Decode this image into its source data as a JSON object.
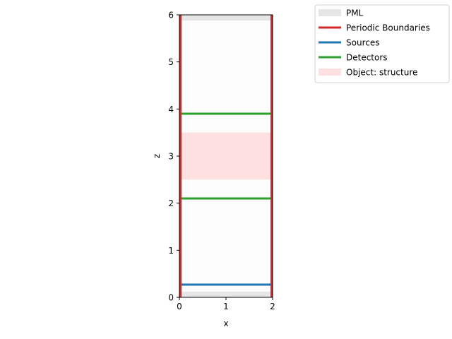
{
  "chart_data": {
    "type": "simulation-layout",
    "xlabel": "x",
    "ylabel": "z",
    "xlim": [
      0,
      2
    ],
    "ylim": [
      0,
      6
    ],
    "xticks": [
      0,
      1,
      2
    ],
    "yticks": [
      0,
      1,
      2,
      3,
      4,
      5,
      6
    ],
    "grid": false,
    "legend_position": "upper-right-outside",
    "pml_regions": [
      {
        "x": [
          0,
          2
        ],
        "z": [
          5.88,
          6.0
        ]
      },
      {
        "x": [
          0,
          2
        ],
        "z": [
          0.0,
          0.12
        ]
      }
    ],
    "pml_interior": {
      "x": [
        0,
        2
      ],
      "z": [
        0.12,
        5.88
      ]
    },
    "periodic_boundaries": [
      0.0,
      2.0
    ],
    "sources": [
      {
        "z": 0.27,
        "x": [
          0,
          2
        ]
      }
    ],
    "detectors": [
      {
        "z": 2.1,
        "x": [
          0,
          2
        ]
      },
      {
        "z": 3.9,
        "x": [
          0,
          2
        ]
      }
    ],
    "objects": [
      {
        "name": "structure",
        "x": [
          0,
          2
        ],
        "z": [
          2.5,
          3.5
        ]
      }
    ],
    "colors": {
      "pml": "#e6e6e6",
      "pml_interior": "#fcfcfc",
      "periodic": "#d62728",
      "source": "#1f77b4",
      "detector": "#2ca02c",
      "object": "#ffe0e0"
    },
    "legend": [
      {
        "label": "PML",
        "kind": "pml"
      },
      {
        "label": "Periodic Boundaries",
        "kind": "periodic"
      },
      {
        "label": "Sources",
        "kind": "source"
      },
      {
        "label": "Detectors",
        "kind": "detector"
      },
      {
        "label": "Object: structure",
        "kind": "object"
      }
    ]
  }
}
